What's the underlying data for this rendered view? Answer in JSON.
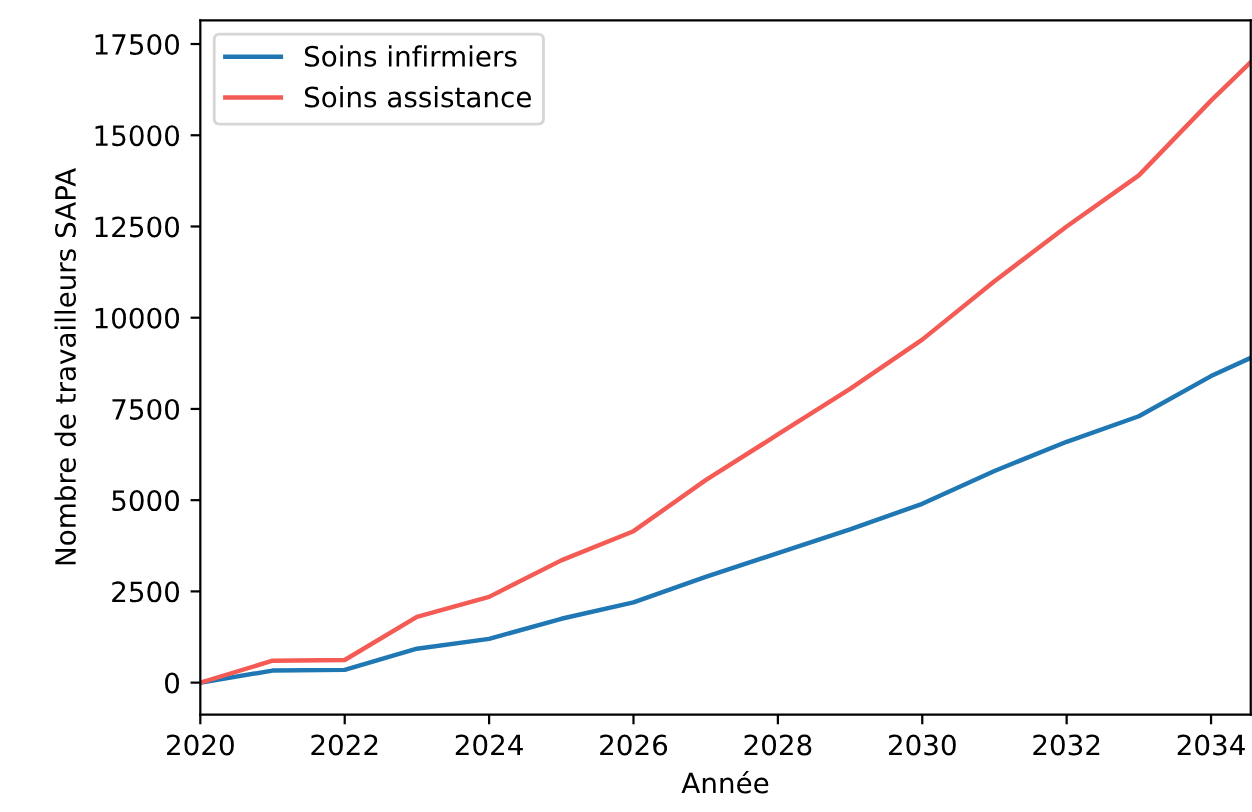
{
  "chart_data": {
    "type": "line",
    "xlabel": "Année",
    "ylabel": "Nombre de travailleurs SAPA",
    "x": [
      2020,
      2021,
      2022,
      2023,
      2024,
      2025,
      2026,
      2027,
      2028,
      2029,
      2030,
      2031,
      2032,
      2033,
      2034,
      2034.55
    ],
    "series": [
      {
        "name": "Soins infirmiers",
        "color": "#1f77b4",
        "values": [
          0,
          330,
          350,
          930,
          1200,
          1750,
          2200,
          2900,
          3550,
          4200,
          4900,
          5800,
          6600,
          7300,
          8400,
          8900
        ]
      },
      {
        "name": "Soins assistance",
        "color": "#f45b55",
        "values": [
          0,
          600,
          620,
          1800,
          2350,
          3350,
          4150,
          5550,
          6800,
          8050,
          9400,
          11000,
          12500,
          13900,
          15950,
          17000
        ]
      }
    ],
    "xlim": [
      2020,
      2034.55
    ],
    "ylim": [
      -875,
      18150
    ],
    "xticks": [
      2020,
      2022,
      2024,
      2026,
      2028,
      2030,
      2032,
      2034
    ],
    "yticks": [
      0,
      2500,
      5000,
      7500,
      10000,
      12500,
      15000,
      17500
    ],
    "grid": false,
    "legend": "top left",
    "line_style": "solid",
    "marker": "none"
  }
}
